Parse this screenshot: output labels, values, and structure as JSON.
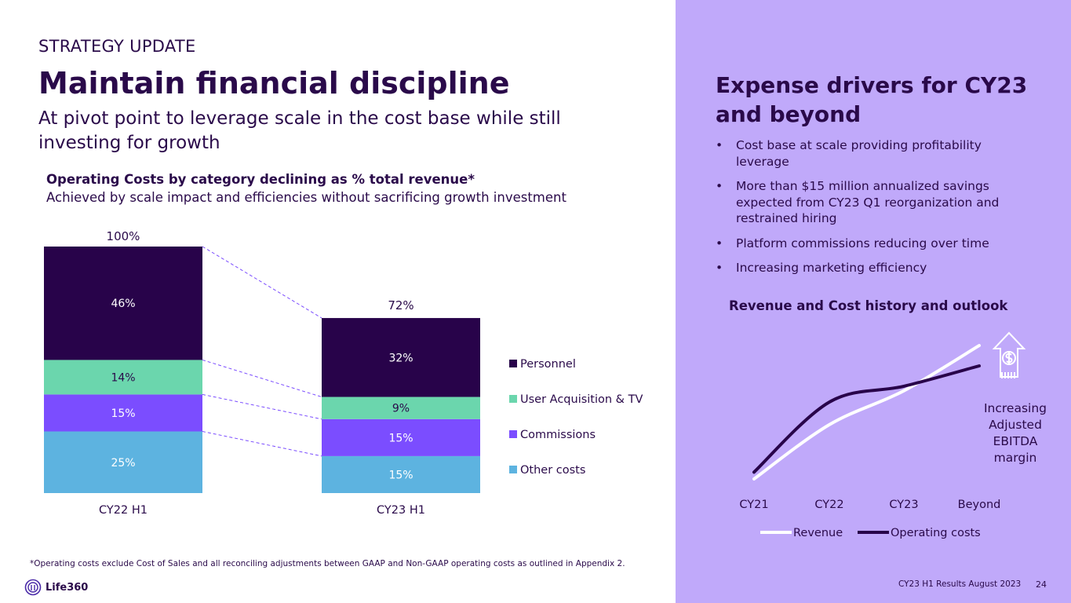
{
  "slide": {
    "eyebrow": "STRATEGY UPDATE",
    "title": "Maintain financial discipline",
    "subtitle": "At pivot point to leverage scale in the cost base while still investing for growth",
    "chart_heading": "Operating Costs by category declining as % total revenue*",
    "chart_subheading": "Achieved by scale impact and efficiencies without sacrificing growth investment",
    "footnote": "*Operating costs exclude Cost of Sales and all reconciling adjustments between GAAP and Non-GAAP operating costs as outlined in Appendix 2.",
    "logo_text": "Life360",
    "footer_text": "CY23 H1 Results August 2023",
    "page_number": "24"
  },
  "sidebar": {
    "title": "Expense drivers for CY23 and beyond",
    "bullets": [
      "Cost base at scale providing profitability leverage",
      "More than $15 million annualized savings expected from CY23 Q1 reorganization and restrained hiring",
      "Platform commissions reducing over time",
      "Increasing marketing efficiency"
    ],
    "bullet_char": "•",
    "chart_title": "Revenue and Cost history and outlook"
  },
  "icons": {
    "logo": "life360-logo-icon",
    "dollar": "dollar-house-up-arrow-icon"
  },
  "colors": {
    "personnel": "#28034a",
    "user_acquisition": "#6bd6ad",
    "commissions": "#7b4dff",
    "other_costs": "#5db3e0",
    "revenue_line": "#ffffff",
    "cost_line": "#28034a",
    "panel": "#c0a9fa",
    "text": "#2a0a4a"
  },
  "chart_data": [
    {
      "type": "bar",
      "stacked": true,
      "categories": [
        "CY22 H1",
        "CY23 H1"
      ],
      "totals": [
        100,
        72
      ],
      "total_labels": [
        "100%",
        "72%"
      ],
      "series": [
        {
          "name": "Other costs",
          "color_key": "other_costs",
          "values": [
            25,
            15
          ],
          "labels": [
            "25%",
            "15%"
          ]
        },
        {
          "name": "Commissions",
          "color_key": "commissions",
          "values": [
            15,
            15
          ],
          "labels": [
            "15%",
            "15%"
          ]
        },
        {
          "name": "User Acquisition & TV",
          "color_key": "user_acquisition",
          "values": [
            14,
            9
          ],
          "labels": [
            "14%",
            "9%"
          ]
        },
        {
          "name": "Personnel",
          "color_key": "personnel",
          "values": [
            46,
            32
          ],
          "labels": [
            "46%",
            "32%"
          ]
        }
      ],
      "legend": [
        "Personnel",
        "User Acquisition & TV",
        "Commissions",
        "Other costs"
      ],
      "ylim": [
        0,
        100
      ]
    },
    {
      "type": "line",
      "title": "Revenue and Cost history and outlook",
      "categories": [
        "CY21",
        "CY22",
        "CY23",
        "Beyond"
      ],
      "series": [
        {
          "name": "Revenue",
          "color_key": "revenue_line",
          "values": [
            0,
            48,
            78,
            118
          ]
        },
        {
          "name": "Operating costs",
          "color_key": "cost_line",
          "values": [
            6,
            68,
            82,
            100
          ]
        }
      ],
      "ylim": [
        0,
        125
      ],
      "annotation": "Increasing Adjusted EBITDA margin",
      "annotation_lines": [
        "Increasing",
        "Adjusted",
        "EBITDA",
        "margin"
      ]
    }
  ]
}
